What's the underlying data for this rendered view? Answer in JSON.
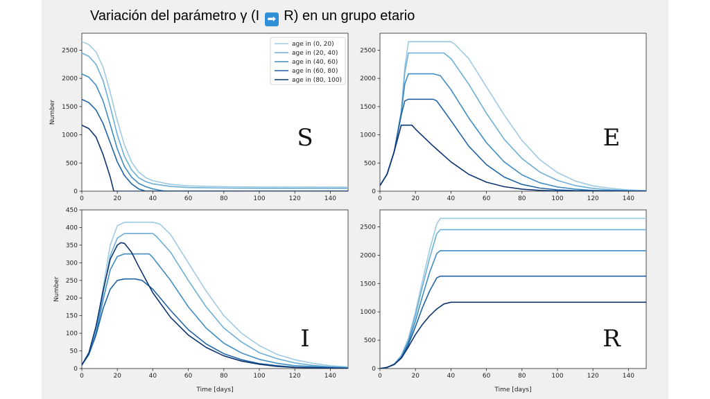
{
  "title": {
    "prefix": "Variación del parámetro γ (I ",
    "arrow": "➡",
    "suffix": " R) en un grupo etario"
  },
  "colors": [
    "#9ecae1",
    "#6baed6",
    "#3f8cc2",
    "#1f63a6",
    "#0c3370"
  ],
  "chart_data": [
    {
      "type": "line",
      "panel_letter": "S",
      "xlim": [
        0,
        150
      ],
      "ylim": [
        0,
        2800
      ],
      "yticks": [
        0,
        500,
        1000,
        1500,
        2000,
        2500
      ],
      "xticks": [
        0,
        20,
        40,
        60,
        80,
        100,
        120,
        140
      ],
      "ylabel": "Number",
      "xlabel": "",
      "legend_position": "top-right",
      "series": [
        {
          "name": "age in (0, 20)",
          "x": [
            0,
            4,
            8,
            12,
            16,
            20,
            24,
            28,
            32,
            36,
            40,
            50,
            60,
            80,
            100,
            150
          ],
          "y": [
            2650,
            2600,
            2470,
            2200,
            1750,
            1250,
            820,
            520,
            340,
            240,
            185,
            120,
            95,
            80,
            75,
            72
          ]
        },
        {
          "name": "age in (20, 40)",
          "x": [
            0,
            4,
            8,
            12,
            16,
            20,
            24,
            28,
            32,
            36,
            40,
            50,
            60,
            80,
            100,
            150
          ],
          "y": [
            2450,
            2390,
            2250,
            1960,
            1500,
            1000,
            620,
            380,
            240,
            170,
            130,
            85,
            65,
            55,
            52,
            50
          ]
        },
        {
          "name": "age in (40, 60)",
          "x": [
            0,
            4,
            8,
            12,
            16,
            20,
            24,
            28,
            32,
            36,
            40,
            46,
            50,
            150
          ],
          "y": [
            2080,
            2020,
            1880,
            1600,
            1180,
            750,
            440,
            250,
            140,
            80,
            40,
            5,
            0,
            0
          ]
        },
        {
          "name": "age in (60, 80)",
          "x": [
            0,
            4,
            8,
            12,
            16,
            20,
            24,
            28,
            32,
            36,
            150
          ],
          "y": [
            1630,
            1570,
            1440,
            1200,
            860,
            520,
            280,
            130,
            40,
            0,
            0
          ]
        },
        {
          "name": "age in (80, 100)",
          "x": [
            0,
            4,
            8,
            12,
            16,
            18,
            150
          ],
          "y": [
            1170,
            1110,
            960,
            650,
            250,
            0,
            0
          ]
        }
      ]
    },
    {
      "type": "line",
      "panel_letter": "E",
      "xlim": [
        0,
        150
      ],
      "ylim": [
        0,
        2800
      ],
      "yticks": [
        0,
        500,
        1000,
        1500,
        2000,
        2500
      ],
      "xticks": [
        0,
        20,
        40,
        60,
        80,
        100,
        120,
        140
      ],
      "ylabel": "",
      "xlabel": "",
      "series": [
        {
          "name": "age in (0, 20)",
          "x": [
            0,
            4,
            8,
            12,
            14,
            16,
            20,
            30,
            40,
            42,
            50,
            60,
            70,
            80,
            90,
            100,
            110,
            120,
            130,
            140,
            150
          ],
          "y": [
            100,
            300,
            700,
            1400,
            2200,
            2650,
            2650,
            2650,
            2650,
            2610,
            2350,
            1850,
            1350,
            900,
            560,
            330,
            180,
            95,
            50,
            25,
            12
          ]
        },
        {
          "name": "age in (20, 40)",
          "x": [
            0,
            4,
            8,
            12,
            14,
            16,
            20,
            30,
            36,
            40,
            50,
            60,
            70,
            80,
            90,
            100,
            110,
            120,
            130,
            140,
            150
          ],
          "y": [
            100,
            300,
            700,
            1400,
            2100,
            2450,
            2450,
            2450,
            2450,
            2350,
            1900,
            1380,
            920,
            580,
            340,
            190,
            100,
            50,
            25,
            12,
            6
          ]
        },
        {
          "name": "age in (40, 60)",
          "x": [
            0,
            4,
            8,
            12,
            14,
            16,
            20,
            30,
            34,
            40,
            50,
            60,
            70,
            80,
            90,
            100,
            110,
            120,
            150
          ],
          "y": [
            100,
            300,
            700,
            1400,
            1900,
            2080,
            2080,
            2080,
            2050,
            1800,
            1300,
            860,
            520,
            290,
            150,
            75,
            35,
            15,
            0
          ]
        },
        {
          "name": "age in (60, 80)",
          "x": [
            0,
            4,
            8,
            12,
            14,
            16,
            20,
            30,
            32,
            40,
            50,
            60,
            70,
            80,
            90,
            100,
            110,
            150
          ],
          "y": [
            100,
            300,
            700,
            1350,
            1600,
            1630,
            1630,
            1630,
            1600,
            1250,
            800,
            470,
            250,
            120,
            55,
            25,
            10,
            0
          ]
        },
        {
          "name": "age in (80, 100)",
          "x": [
            0,
            4,
            8,
            12,
            14,
            16,
            18,
            20,
            30,
            40,
            50,
            60,
            70,
            80,
            90,
            100,
            150
          ],
          "y": [
            100,
            300,
            700,
            1170,
            1170,
            1170,
            1170,
            1100,
            800,
            520,
            300,
            160,
            80,
            35,
            15,
            5,
            0
          ]
        }
      ]
    },
    {
      "type": "line",
      "panel_letter": "I",
      "xlim": [
        0,
        150
      ],
      "ylim": [
        0,
        450
      ],
      "yticks": [
        0,
        50,
        100,
        150,
        200,
        250,
        300,
        350,
        400,
        450
      ],
      "xticks": [
        0,
        20,
        40,
        60,
        80,
        100,
        120,
        140
      ],
      "ylabel": "Number",
      "xlabel": "Time [days]",
      "series": [
        {
          "name": "age in (0, 20)",
          "x": [
            0,
            4,
            8,
            12,
            16,
            20,
            24,
            30,
            40,
            44,
            50,
            60,
            70,
            80,
            90,
            100,
            110,
            120,
            130,
            140,
            150
          ],
          "y": [
            10,
            40,
            110,
            230,
            350,
            405,
            415,
            415,
            415,
            410,
            380,
            300,
            220,
            150,
            100,
            65,
            40,
            25,
            15,
            8,
            5
          ]
        },
        {
          "name": "age in (20, 40)",
          "x": [
            0,
            4,
            8,
            12,
            16,
            20,
            24,
            30,
            40,
            42,
            50,
            60,
            70,
            80,
            90,
            100,
            110,
            120,
            130,
            140,
            150
          ],
          "y": [
            10,
            40,
            105,
            215,
            320,
            370,
            383,
            383,
            383,
            375,
            330,
            250,
            175,
            115,
            75,
            45,
            28,
            16,
            9,
            5,
            3
          ]
        },
        {
          "name": "age in (40, 60)",
          "x": [
            0,
            4,
            8,
            12,
            16,
            20,
            24,
            30,
            38,
            40,
            50,
            60,
            70,
            80,
            90,
            100,
            110,
            120,
            150
          ],
          "y": [
            10,
            40,
            100,
            195,
            280,
            318,
            325,
            325,
            325,
            315,
            250,
            175,
            115,
            72,
            44,
            26,
            15,
            8,
            2
          ]
        },
        {
          "name": "age in (60, 80)",
          "x": [
            0,
            4,
            8,
            12,
            16,
            20,
            24,
            30,
            34,
            40,
            50,
            60,
            70,
            80,
            90,
            100,
            110,
            120,
            150
          ],
          "y": [
            10,
            40,
            95,
            170,
            225,
            250,
            254,
            254,
            250,
            225,
            165,
            110,
            70,
            42,
            25,
            14,
            8,
            4,
            1
          ]
        },
        {
          "name": "age in (80, 100)",
          "x": [
            0,
            4,
            8,
            12,
            16,
            20,
            22,
            24,
            28,
            32,
            40,
            50,
            60,
            70,
            80,
            90,
            100,
            110,
            120,
            150
          ],
          "y": [
            10,
            45,
            120,
            220,
            310,
            350,
            357,
            355,
            330,
            290,
            215,
            145,
            95,
            60,
            36,
            21,
            12,
            6,
            3,
            0
          ]
        }
      ]
    },
    {
      "type": "line",
      "panel_letter": "R",
      "xlim": [
        0,
        150
      ],
      "ylim": [
        0,
        2800
      ],
      "yticks": [
        0,
        500,
        1000,
        1500,
        2000,
        2500
      ],
      "xticks": [
        0,
        20,
        40,
        60,
        80,
        100,
        120,
        140
      ],
      "ylabel": "",
      "xlabel": "Time [days]",
      "series": [
        {
          "name": "age in (0, 20)",
          "x": [
            0,
            4,
            8,
            12,
            16,
            20,
            24,
            28,
            32,
            34,
            150
          ],
          "y": [
            0,
            20,
            80,
            230,
            530,
            1000,
            1550,
            2100,
            2550,
            2650,
            2650
          ]
        },
        {
          "name": "age in (20, 40)",
          "x": [
            0,
            4,
            8,
            12,
            16,
            20,
            24,
            28,
            32,
            34,
            150
          ],
          "y": [
            0,
            20,
            80,
            220,
            500,
            940,
            1450,
            1950,
            2380,
            2450,
            2450
          ]
        },
        {
          "name": "age in (40, 60)",
          "x": [
            0,
            4,
            8,
            12,
            16,
            20,
            24,
            28,
            32,
            34,
            150
          ],
          "y": [
            0,
            20,
            75,
            200,
            460,
            840,
            1280,
            1700,
            2030,
            2080,
            2080
          ]
        },
        {
          "name": "age in (60, 80)",
          "x": [
            0,
            4,
            8,
            12,
            16,
            20,
            24,
            28,
            32,
            34,
            150
          ],
          "y": [
            0,
            20,
            70,
            190,
            420,
            740,
            1080,
            1370,
            1600,
            1630,
            1630
          ]
        },
        {
          "name": "age in (80, 100)",
          "x": [
            0,
            4,
            8,
            12,
            16,
            20,
            24,
            28,
            32,
            36,
            40,
            150
          ],
          "y": [
            0,
            20,
            70,
            180,
            380,
            600,
            780,
            930,
            1050,
            1140,
            1170,
            1170
          ]
        }
      ]
    }
  ]
}
